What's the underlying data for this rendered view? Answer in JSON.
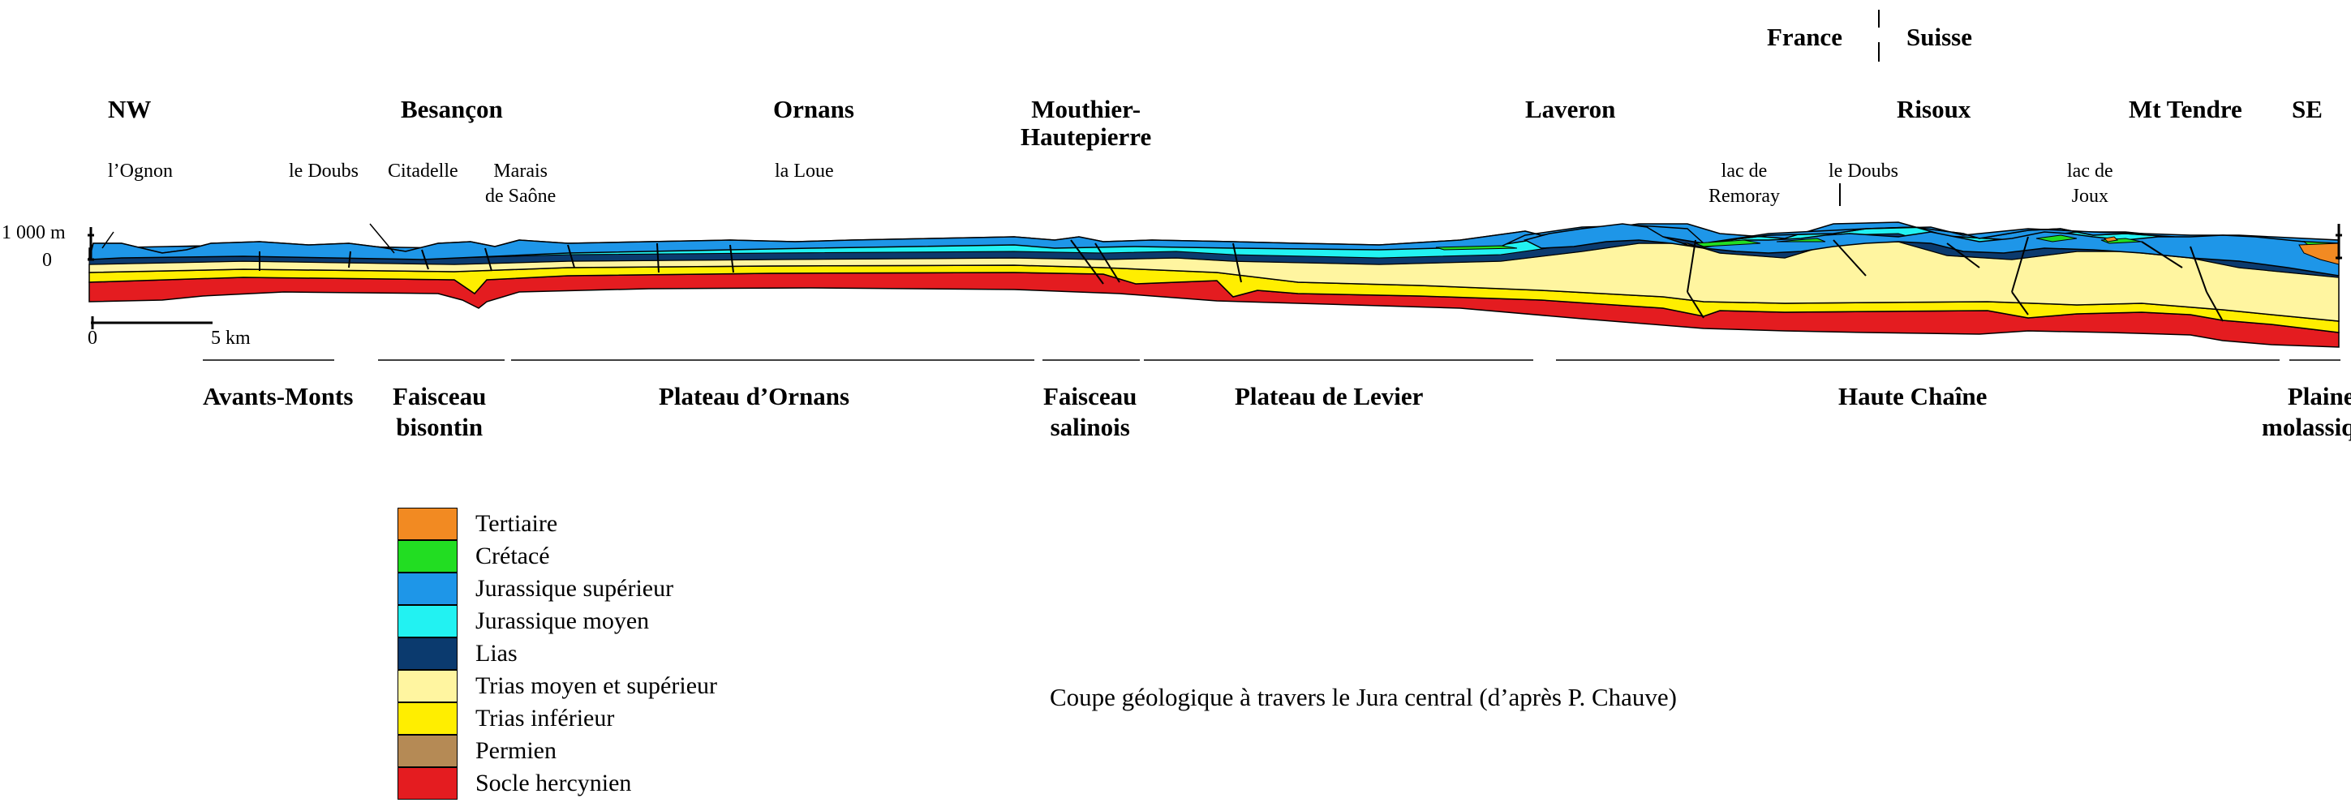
{
  "countries": {
    "left": "France",
    "right": "Suisse"
  },
  "locations": {
    "nw": "NW",
    "besancon": "Besançon",
    "ornans": "Ornans",
    "mouthier": "Mouthier-\nHautepierre",
    "laveron": "Laveron",
    "risoux": "Risoux",
    "mt_tendre": "Mt Tendre",
    "se": "SE"
  },
  "features": {
    "ognon": "l’Ognon",
    "doubs1": "le Doubs",
    "citadelle": "Citadelle",
    "marais": "Marais\nde Saône",
    "loue": "la Loue",
    "remoray": "lac de\nRemoray",
    "doubs2": "le Doubs",
    "joux": "lac de\nJoux"
  },
  "axis": {
    "elev_top": "1 000 m",
    "elev_zero": "0",
    "scale_start": "0",
    "scale_end": "5 km"
  },
  "regions": [
    "Avants-Monts",
    "Faisceau\nbisontin",
    "Plateau d’Ornans",
    "Faisceau\nsalinois",
    "Plateau de Levier",
    "Haute Chaîne",
    "Plaine\nmolassique"
  ],
  "legend": [
    {
      "label": "Tertiaire",
      "color": "#f28a22"
    },
    {
      "label": "Crétacé",
      "color": "#22dd22"
    },
    {
      "label": "Jurassique supérieur",
      "color": "#1e96e8"
    },
    {
      "label": "Jurassique moyen",
      "color": "#22f2f2"
    },
    {
      "label": "Lias",
      "color": "#0b3a6e"
    },
    {
      "label": "Trias moyen et supérieur",
      "color": "#fff5a0"
    },
    {
      "label": "Trias inférieur",
      "color": "#ffee00"
    },
    {
      "label": "Permien",
      "color": "#b58a55"
    },
    {
      "label": "Socle hercynien",
      "color": "#e41c20"
    }
  ],
  "caption": "Coupe géologique à travers le Jura central (d’après P. Chauve)"
}
